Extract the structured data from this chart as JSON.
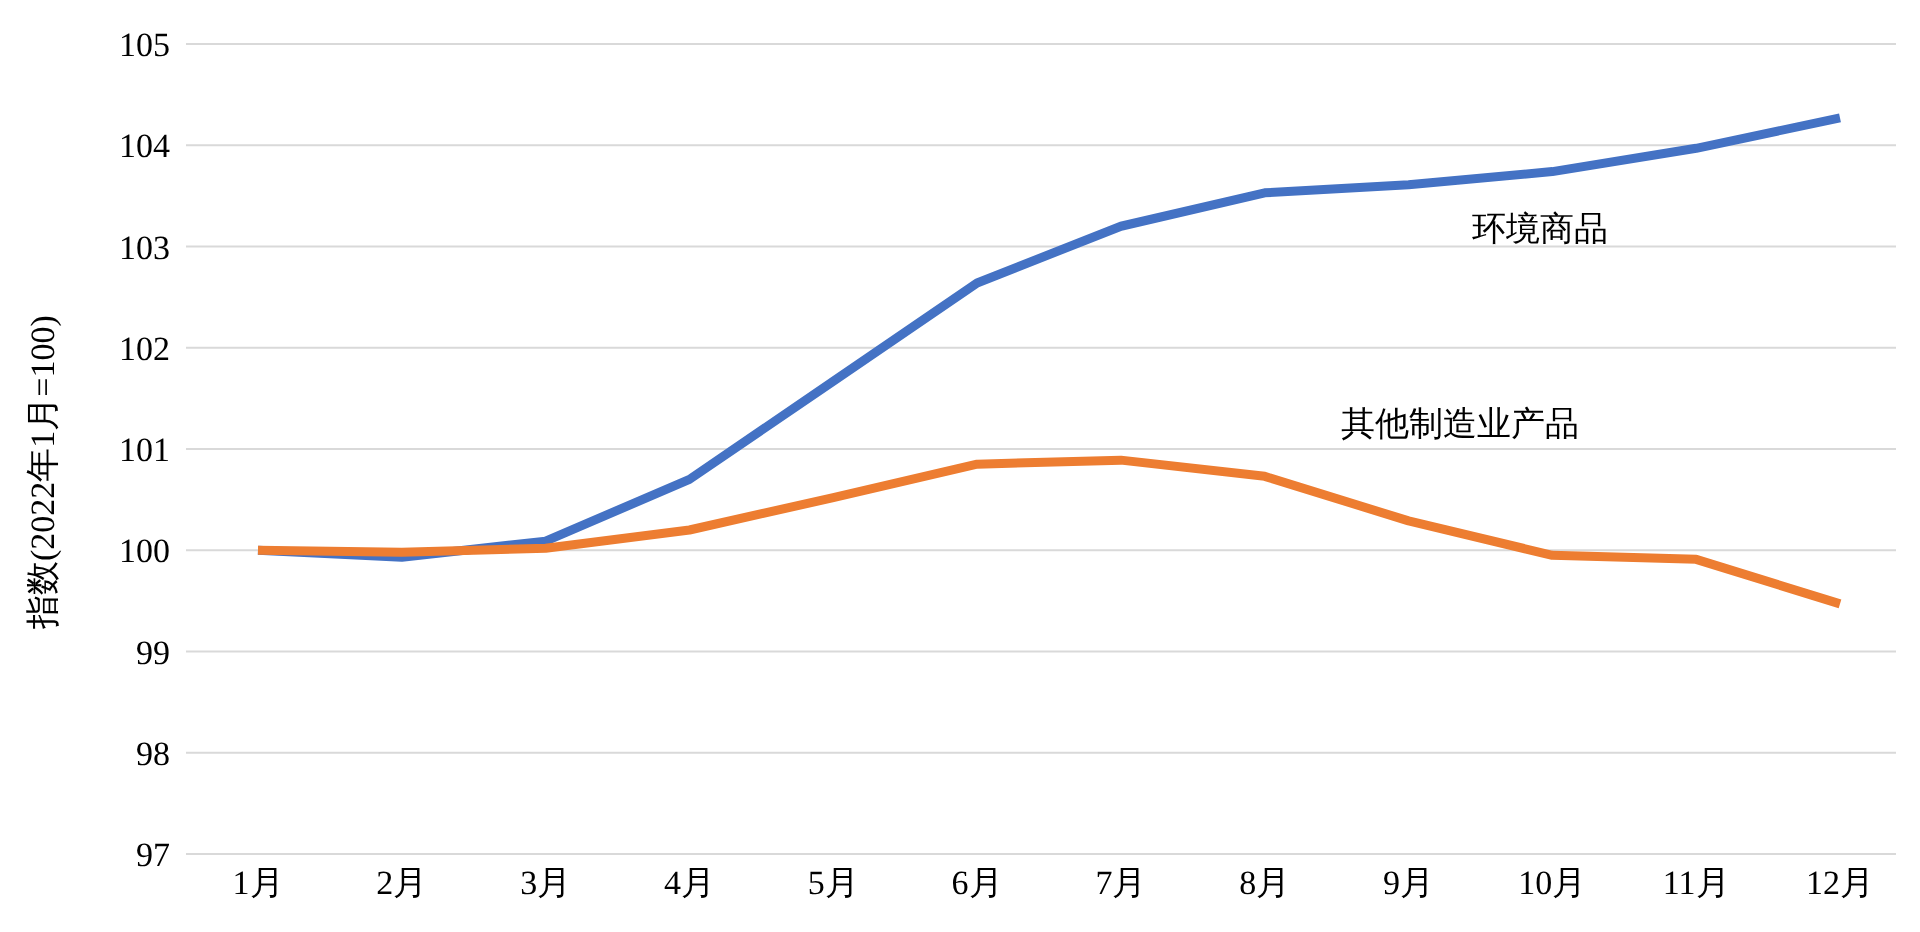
{
  "chart_data": {
    "type": "line",
    "ylabel": "指数(2022年1月=100)",
    "categories": [
      "1月",
      "2月",
      "3月",
      "4月",
      "5月",
      "6月",
      "7月",
      "8月",
      "9月",
      "10月",
      "11月",
      "12月"
    ],
    "series": [
      {
        "name": "环境商品",
        "color": "#4472c4",
        "values": [
          100,
          99.93,
          100.09,
          100.7,
          101.67,
          102.64,
          103.2,
          103.53,
          103.61,
          103.74,
          103.97,
          104.27
        ]
      },
      {
        "name": "其他制造业产品",
        "color": "#ed7d31",
        "values": [
          100,
          99.98,
          100.02,
          100.2,
          100.52,
          100.85,
          100.89,
          100.73,
          100.29,
          99.95,
          99.91,
          99.47
        ]
      }
    ],
    "ylim": [
      97,
      105
    ],
    "yticks": [
      97,
      98,
      99,
      100,
      101,
      102,
      103,
      104,
      105
    ],
    "grid": "y",
    "legend": false,
    "marker": "none",
    "line_style": "solid"
  }
}
